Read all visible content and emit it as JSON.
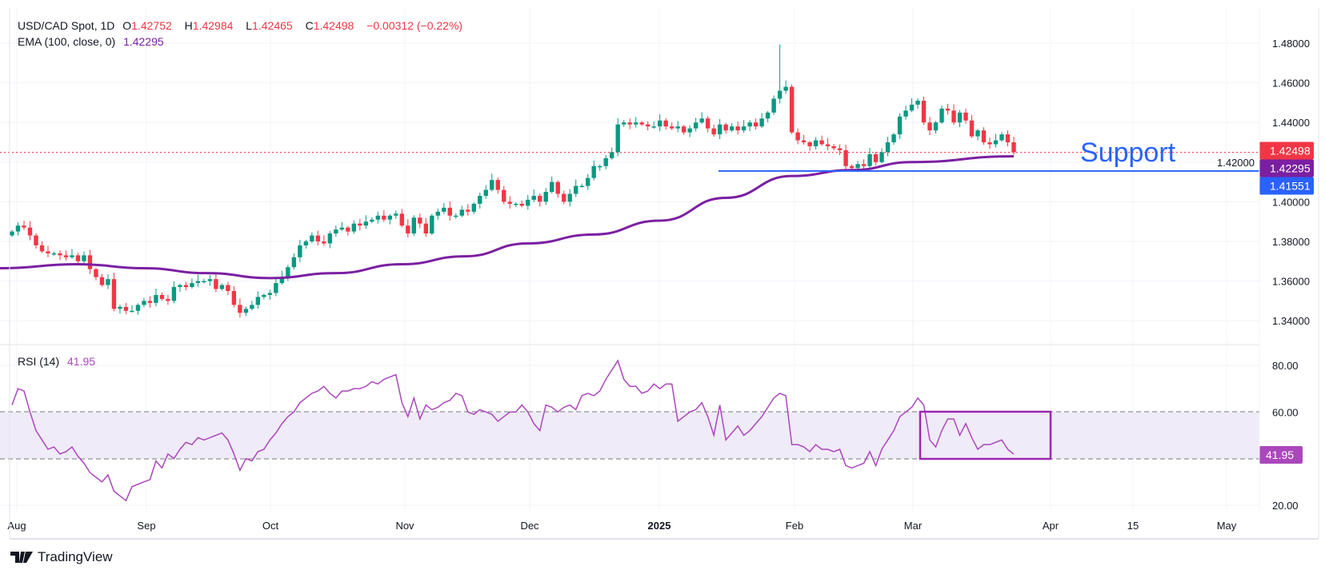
{
  "header": {
    "symbol": "USD/CAD Spot, 1D",
    "open_label": "O",
    "open": "1.42752",
    "high_label": "H",
    "high": "1.42984",
    "low_label": "L",
    "low": "1.42465",
    "close_label": "C",
    "close": "1.42498",
    "change": "−0.00312 (−0.22%)"
  },
  "ema_legend": {
    "label": "EMA (100, close, 0)",
    "value": "1.42295"
  },
  "rsi_legend": {
    "label": "RSI (14)",
    "value": "41.95"
  },
  "annotation": {
    "support_text": "Support"
  },
  "price_tags": {
    "last": "1.42498",
    "ema": "1.42295",
    "support": "1.41551"
  },
  "rsi_tag": "41.95",
  "branding": {
    "name": "TradingView"
  },
  "colors": {
    "up": "#089981",
    "down": "#f23645",
    "ema": "#7b1fa2",
    "rsi": "#ab47bc",
    "support": "#2962ff",
    "rsi_box": "#9c27b0"
  },
  "chart_data": [
    {
      "type": "candlestick",
      "title": "USD/CAD Spot, 1D",
      "ylim": [
        1.33,
        1.49
      ],
      "price_ticks": [
        "1.48000",
        "1.46000",
        "1.44000",
        "1.42000",
        "1.40000",
        "1.38000",
        "1.36000",
        "1.34000"
      ],
      "time_ticks": [
        "Aug",
        "Sep",
        "Oct",
        "Nov",
        "Dec",
        "2025",
        "Feb",
        "Mar",
        "Apr",
        "15",
        "May"
      ],
      "first_open": 1.383,
      "months": [
        {
          "month": "Aug",
          "closes": [
            1.385,
            1.388,
            1.387,
            1.383,
            1.378,
            1.375,
            1.374,
            1.374,
            1.373,
            1.372,
            1.373,
            1.37,
            1.373,
            1.366,
            1.362,
            1.358,
            1.361,
            1.346,
            1.347,
            1.345,
            1.345,
            1.348
          ]
        },
        {
          "month": "Sep",
          "closes": [
            1.35,
            1.349,
            1.353,
            1.351,
            1.35,
            1.357,
            1.358,
            1.357,
            1.359,
            1.36,
            1.36,
            1.361,
            1.356,
            1.358,
            1.355,
            1.348,
            1.344,
            1.346,
            1.348,
            1.352,
            1.353
          ]
        },
        {
          "month": "Oct",
          "closes": [
            1.354,
            1.359,
            1.362,
            1.367,
            1.372,
            1.378,
            1.38,
            1.383,
            1.38,
            1.379,
            1.384,
            1.386,
            1.387,
            1.385,
            1.389,
            1.388,
            1.39,
            1.391,
            1.393,
            1.391,
            1.393,
            1.394
          ]
        },
        {
          "month": "Nov",
          "closes": [
            1.388,
            1.384,
            1.392,
            1.389,
            1.384,
            1.393,
            1.395,
            1.397,
            1.393,
            1.393,
            1.396,
            1.395,
            1.399,
            1.403,
            1.406,
            1.411,
            1.406,
            1.4,
            1.399,
            1.399,
            1.398
          ]
        },
        {
          "month": "Dec",
          "closes": [
            1.401,
            1.403,
            1.4,
            1.405,
            1.41,
            1.404,
            1.4,
            1.404,
            1.408,
            1.408,
            1.412,
            1.418,
            1.418,
            1.422,
            1.425,
            1.439,
            1.44,
            1.439,
            1.44,
            1.439,
            1.438,
            1.438
          ]
        },
        {
          "month": "Jan",
          "closes": [
            1.441,
            1.438,
            1.437,
            1.438,
            1.435,
            1.437,
            1.44,
            1.442,
            1.437,
            1.434,
            1.439,
            1.436,
            1.438,
            1.436,
            1.438,
            1.44,
            1.438,
            1.442,
            1.445,
            1.452,
            1.456,
            1.458
          ],
          "spike_high": 1.4793
        },
        {
          "month": "Feb",
          "closes": [
            1.435,
            1.431,
            1.43,
            1.428,
            1.431,
            1.429,
            1.428,
            1.427,
            1.426,
            1.418,
            1.417,
            1.419,
            1.418,
            1.424,
            1.42,
            1.425,
            1.43,
            1.434,
            1.443,
            1.446
          ]
        },
        {
          "month": "Mar",
          "closes": [
            1.449,
            1.451,
            1.44,
            1.436,
            1.44,
            1.447,
            1.446,
            1.44,
            1.445,
            1.441,
            1.433,
            1.436,
            1.43,
            1.429,
            1.431,
            1.434,
            1.43,
            1.42498
          ]
        }
      ],
      "ema_series": {
        "name": "EMA (100, close, 0)",
        "points": [
          {
            "month": "Aug",
            "value": 1.3665
          },
          {
            "month": "Aug-mid",
            "value": 1.3685
          },
          {
            "month": "Sep",
            "value": 1.3665
          },
          {
            "month": "Sep-mid",
            "value": 1.364
          },
          {
            "month": "Oct",
            "value": 1.3615
          },
          {
            "month": "Oct-mid",
            "value": 1.364
          },
          {
            "month": "Nov",
            "value": 1.3685
          },
          {
            "month": "Nov-mid",
            "value": 1.3725
          },
          {
            "month": "Dec",
            "value": 1.379
          },
          {
            "month": "Dec-mid",
            "value": 1.3835
          },
          {
            "month": "Jan",
            "value": 1.3905
          },
          {
            "month": "Jan-mid",
            "value": 1.402
          },
          {
            "month": "Feb",
            "value": 1.413
          },
          {
            "month": "Feb-mid",
            "value": 1.416
          },
          {
            "month": "Mar",
            "value": 1.42
          },
          {
            "month": "Mar-end",
            "value": 1.42295
          }
        ]
      },
      "support_level": 1.41551,
      "last_price": 1.42498
    },
    {
      "type": "line",
      "title": "RSI (14)",
      "ylim": [
        12,
        90
      ],
      "ticks": [
        "80.00",
        "60.00",
        "20.00"
      ],
      "bands": [
        40,
        60
      ],
      "months": [
        {
          "month": "Aug",
          "values": [
            63,
            70,
            69,
            60,
            52,
            48,
            44,
            45,
            42,
            43,
            45,
            41,
            38,
            34,
            32,
            30,
            33,
            26,
            24,
            22,
            28,
            29
          ]
        },
        {
          "month": "Sep",
          "values": [
            30,
            31,
            39,
            36,
            42,
            40,
            44,
            47,
            46,
            49,
            48,
            49,
            50,
            51,
            48,
            42,
            35,
            40,
            39,
            43,
            44
          ]
        },
        {
          "month": "Oct",
          "values": [
            48,
            51,
            55,
            58,
            60,
            64,
            66,
            68,
            69,
            71,
            68,
            66,
            69,
            69,
            70,
            70,
            71,
            73,
            72,
            74,
            75,
            76
          ]
        },
        {
          "month": "Nov",
          "values": [
            64,
            58,
            66,
            57,
            63,
            61,
            62,
            64,
            65,
            68,
            67,
            60,
            59,
            61,
            60,
            59,
            56,
            58,
            60,
            60,
            63
          ]
        },
        {
          "month": "Dec",
          "values": [
            60,
            55,
            52,
            63,
            62,
            60,
            62,
            63,
            61,
            67,
            68,
            67,
            69,
            74,
            78,
            82,
            74,
            71,
            71,
            68,
            69,
            72
          ]
        },
        {
          "month": "Jan",
          "values": [
            70,
            72,
            72,
            56,
            58,
            60,
            61,
            64,
            58,
            50,
            63,
            48,
            51,
            54,
            50,
            52,
            55,
            58,
            62,
            66,
            68,
            67
          ]
        },
        {
          "month": "Feb",
          "values": [
            46,
            46,
            45,
            43,
            46,
            44,
            44,
            43,
            44,
            37,
            36,
            37,
            38,
            43,
            37,
            44,
            48,
            52,
            58,
            60
          ]
        },
        {
          "month": "Mar",
          "values": [
            62,
            66,
            63,
            48,
            45,
            52,
            57,
            57,
            50,
            55,
            49,
            44,
            46,
            46,
            47,
            48,
            44,
            41.95
          ]
        }
      ]
    }
  ]
}
